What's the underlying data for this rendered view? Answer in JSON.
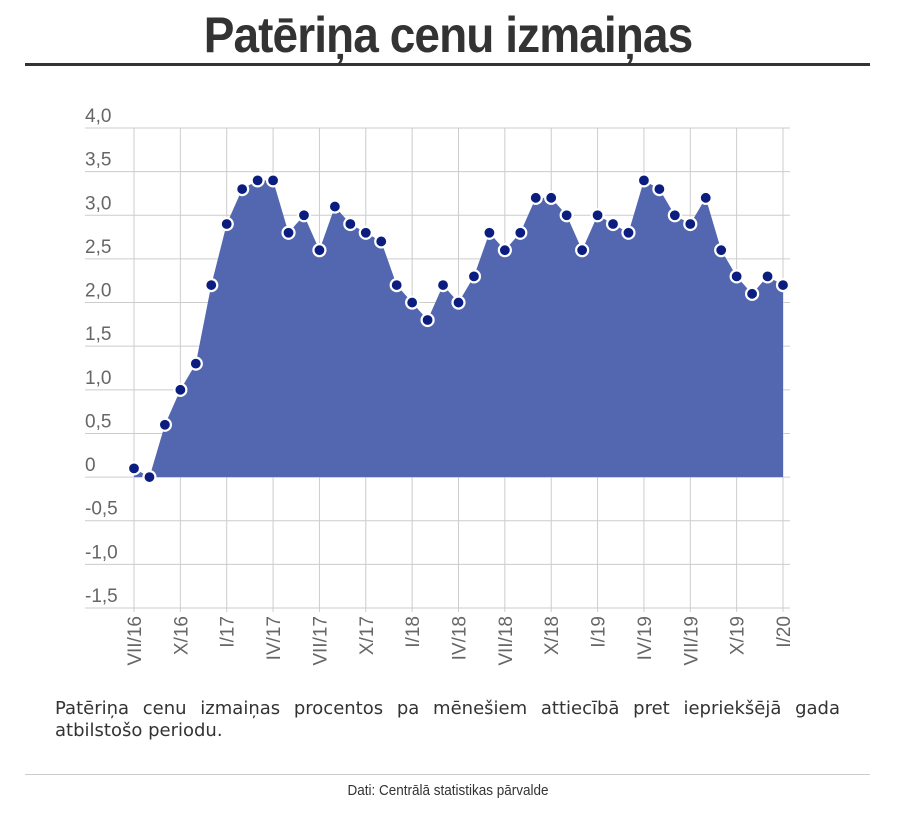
{
  "header": {
    "title": "Patēriņa cenu izmaiņas"
  },
  "description": "Patēriņa cenu izmaiņas procentos pa mēnešiem attiecībā pret iepriekšējā gada atbilstošo periodu.",
  "source": "Dati: Centrālā statistikas pārvalde",
  "colors": {
    "area": "#5366b0",
    "point": "#0b1e80",
    "point_outline": "#ffffff",
    "grid": "#cccccc"
  },
  "chart_data": {
    "type": "area",
    "title": "",
    "xlabel": "",
    "ylabel": "",
    "ylim": [
      -1.5,
      4.0
    ],
    "grid": true,
    "y_ticks": [
      {
        "value": 4.0,
        "label": "4,0"
      },
      {
        "value": 3.5,
        "label": "3,5"
      },
      {
        "value": 3.0,
        "label": "3,0"
      },
      {
        "value": 2.5,
        "label": "2,5"
      },
      {
        "value": 2.0,
        "label": "2,0"
      },
      {
        "value": 1.5,
        "label": "1,5"
      },
      {
        "value": 1.0,
        "label": "1,0"
      },
      {
        "value": 0.5,
        "label": "0,5"
      },
      {
        "value": 0,
        "label": "0"
      },
      {
        "value": -0.5,
        "label": "-0,5"
      },
      {
        "value": -1.0,
        "label": "-1,0"
      },
      {
        "value": -1.5,
        "label": "-1,5"
      }
    ],
    "x": [
      "VII/16",
      "VIII/16",
      "IX/16",
      "X/16",
      "XI/16",
      "XII/16",
      "I/17",
      "II/17",
      "III/17",
      "IV/17",
      "V/17",
      "VI/17",
      "VII/17",
      "VIII/17",
      "IX/17",
      "X/17",
      "XI/17",
      "XII/17",
      "I/18",
      "II/18",
      "III/18",
      "IV/18",
      "V/18",
      "VI/18",
      "VII/18",
      "VIII/18",
      "IX/18",
      "X/18",
      "XI/18",
      "XII/18",
      "I/19",
      "II/19",
      "III/19",
      "IV/19",
      "V/19",
      "VI/19",
      "VII/19",
      "VIII/19",
      "IX/19",
      "X/19",
      "XI/19",
      "XII/19",
      "I/20"
    ],
    "x_tick_labels": [
      "VII/16",
      "X/16",
      "I/17",
      "IV/17",
      "VII/17",
      "X/17",
      "I/18",
      "IV/18",
      "VII/18",
      "X/18",
      "I/19",
      "IV/19",
      "VII/19",
      "X/19",
      "I/20"
    ],
    "values": [
      0.1,
      0.0,
      0.6,
      1.0,
      1.3,
      2.2,
      2.9,
      3.3,
      3.4,
      3.4,
      2.8,
      3.0,
      2.6,
      3.1,
      2.9,
      2.8,
      2.7,
      2.2,
      2.0,
      1.8,
      2.2,
      2.0,
      2.3,
      2.8,
      2.6,
      2.8,
      3.2,
      3.2,
      3.0,
      2.6,
      3.0,
      2.9,
      2.8,
      3.4,
      3.3,
      3.0,
      2.9,
      3.2,
      2.6,
      2.3,
      2.1,
      2.3,
      2.2
    ]
  }
}
